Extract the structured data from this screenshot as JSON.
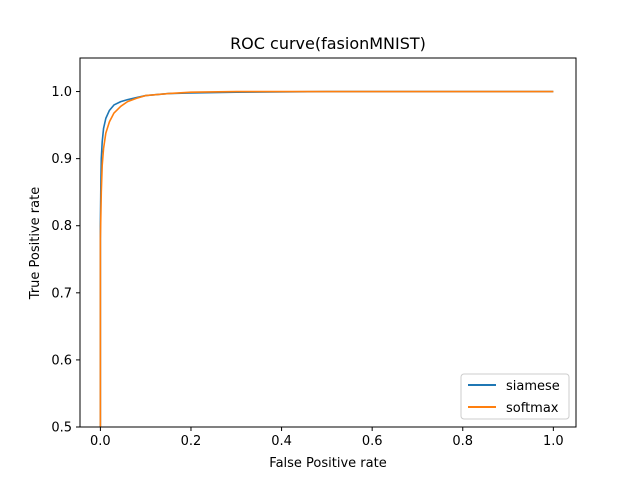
{
  "chart_data": {
    "type": "line",
    "title": "ROC curve(fasionMNIST)",
    "xlabel": "False Positive rate",
    "ylabel": "True Positive rate",
    "xlim": [
      -0.045,
      1.05
    ],
    "ylim": [
      0.5,
      1.05
    ],
    "xticks": [
      "0.0",
      "0.2",
      "0.4",
      "0.6",
      "0.8",
      "1.0"
    ],
    "yticks": [
      "0.5",
      "0.6",
      "0.7",
      "0.8",
      "0.9",
      "1.0"
    ],
    "grid": false,
    "legend_position": "lower-right",
    "series": [
      {
        "name": "siamese",
        "color": "#1f77b4",
        "x": [
          0.0,
          0.0,
          0.001,
          0.002,
          0.004,
          0.007,
          0.012,
          0.02,
          0.03,
          0.045,
          0.06,
          0.08,
          0.1,
          0.15,
          0.2,
          0.3,
          0.5,
          1.0
        ],
        "y": [
          0.5,
          0.8,
          0.86,
          0.9,
          0.925,
          0.945,
          0.96,
          0.972,
          0.98,
          0.985,
          0.988,
          0.991,
          0.994,
          0.997,
          0.998,
          0.999,
          1.0,
          1.0
        ]
      },
      {
        "name": "softmax",
        "color": "#ff7f0e",
        "x": [
          0.0,
          0.0,
          0.002,
          0.004,
          0.007,
          0.012,
          0.02,
          0.03,
          0.045,
          0.06,
          0.08,
          0.1,
          0.15,
          0.2,
          0.3,
          0.5,
          1.0
        ],
        "y": [
          0.5,
          0.78,
          0.85,
          0.89,
          0.915,
          0.938,
          0.955,
          0.968,
          0.978,
          0.985,
          0.99,
          0.994,
          0.997,
          0.999,
          1.0,
          1.0,
          1.0
        ]
      }
    ]
  }
}
